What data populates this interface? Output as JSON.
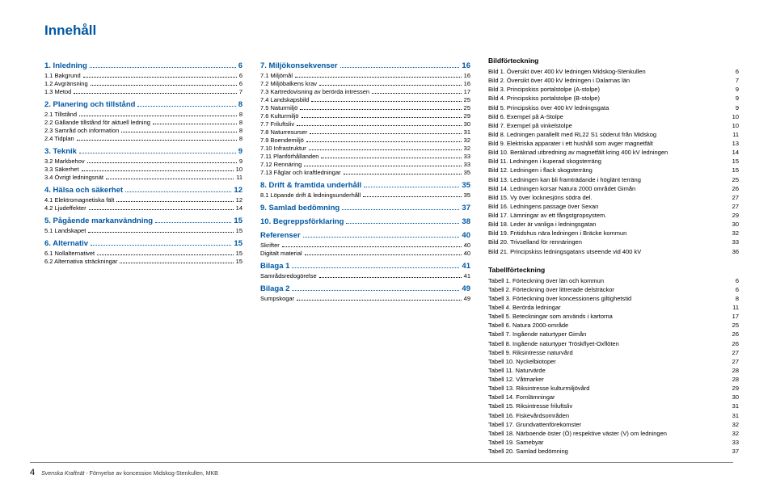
{
  "title": "Innehåll",
  "colors": {
    "accent": "#0058a3",
    "text": "#000000",
    "background": "#ffffff"
  },
  "col1": [
    {
      "type": "main",
      "label": "1. Inledning",
      "page": "6"
    },
    {
      "type": "sub",
      "label": "1.1 Bakgrund",
      "page": "6"
    },
    {
      "type": "sub",
      "label": "1.2 Avgränsning",
      "page": "6"
    },
    {
      "type": "sub",
      "label": "1.3 Metod",
      "page": "7"
    },
    {
      "type": "main",
      "label": "2. Planering och tillstånd",
      "page": "8"
    },
    {
      "type": "sub",
      "label": "2.1 Tillstånd",
      "page": "8"
    },
    {
      "type": "sub",
      "label": "2.2 Gällande tillstånd för aktuell ledning",
      "page": "8"
    },
    {
      "type": "sub",
      "label": "2.3 Samråd och information",
      "page": "8"
    },
    {
      "type": "sub",
      "label": "2.4 Tidplan",
      "page": "8"
    },
    {
      "type": "main",
      "label": "3. Teknik",
      "page": "9"
    },
    {
      "type": "sub",
      "label": "3.2 Markbehov",
      "page": "9"
    },
    {
      "type": "sub",
      "label": "3.3 Säkerhet",
      "page": "10"
    },
    {
      "type": "sub",
      "label": "3.4 Övrigt ledningsnät",
      "page": "11"
    },
    {
      "type": "main",
      "label": "4. Hälsa och säkerhet",
      "page": "12"
    },
    {
      "type": "sub",
      "label": "4.1 Elektromagnetiska fält",
      "page": "12"
    },
    {
      "type": "sub",
      "label": "4.2 Ljudeffekter",
      "page": "14"
    },
    {
      "type": "main",
      "label": "5. Pågående markanvändning",
      "page": "15"
    },
    {
      "type": "sub",
      "label": "5.1 Landskapet",
      "page": "15"
    },
    {
      "type": "main",
      "label": "6. Alternativ",
      "page": "15"
    },
    {
      "type": "sub",
      "label": "6.1 Nollalternativet",
      "page": "15"
    },
    {
      "type": "sub",
      "label": "6.2 Alternativa sträckningar",
      "page": "15"
    }
  ],
  "col2": [
    {
      "type": "main",
      "label": "7. Miljökonsekvenser",
      "page": "16"
    },
    {
      "type": "sub",
      "label": "7.1 Miljömål",
      "page": "16"
    },
    {
      "type": "sub",
      "label": "7.2 Miljöbalkens krav",
      "page": "16"
    },
    {
      "type": "sub",
      "label": "7.3 Kartredovisning av berörda intressen",
      "page": "17"
    },
    {
      "type": "sub",
      "label": "7.4 Landskapsbild",
      "page": "25"
    },
    {
      "type": "sub",
      "label": "7.5 Naturmiljö",
      "page": "25"
    },
    {
      "type": "sub",
      "label": "7.6 Kulturmiljö",
      "page": "29"
    },
    {
      "type": "sub",
      "label": "7.7 Friluftsliv",
      "page": "30"
    },
    {
      "type": "sub",
      "label": "7.8 Naturresurser",
      "page": "31"
    },
    {
      "type": "sub",
      "label": "7.9 Boendemiljö",
      "page": "32"
    },
    {
      "type": "sub",
      "label": "7.10 Infrastruktur",
      "page": "32"
    },
    {
      "type": "sub",
      "label": "7.11 Planförhållanden",
      "page": "33"
    },
    {
      "type": "sub",
      "label": "7.12 Rennäring",
      "page": "33"
    },
    {
      "type": "sub",
      "label": "7.13 Fåglar och kraftledningar",
      "page": "35"
    },
    {
      "type": "main",
      "label": "8. Drift & framtida underhåll",
      "page": "35"
    },
    {
      "type": "sub",
      "label": "8.1 Löpande drift & ledningsunderhåll",
      "page": "35"
    },
    {
      "type": "main",
      "label": "9. Samlad bedömning",
      "page": "37"
    },
    {
      "type": "main",
      "label": "10. Begreppsförklaring",
      "page": "38"
    },
    {
      "type": "main",
      "label": "Referenser",
      "page": "40"
    },
    {
      "type": "sub",
      "label": "Skrifter",
      "page": "40"
    },
    {
      "type": "sub",
      "label": "Digitalt material",
      "page": "40"
    },
    {
      "type": "main",
      "label": "Bilaga 1",
      "page": "41"
    },
    {
      "type": "sub",
      "label": "Samrådsredogörelse",
      "page": "41"
    },
    {
      "type": "main",
      "label": "Bilaga 2",
      "page": "49"
    },
    {
      "type": "sub",
      "label": "Sumpskogar",
      "page": "49"
    }
  ],
  "figures": {
    "heading": "Bildförteckning",
    "items": [
      {
        "label": "Bild 1. Översikt över 400 kV ledningen Midskog-Stenkullen",
        "page": "6"
      },
      {
        "label": "Bild 2. Översikt över 400 kV ledningen i Dalarnas län",
        "page": "7"
      },
      {
        "label": "Bild 3. Principskiss portalstolpe (A-stolpe)",
        "page": "9"
      },
      {
        "label": "Bild 4. Principskiss portalstolpe (B-stolpe)",
        "page": "9"
      },
      {
        "label": "Bild 5. Principskiss över 400 kV ledningsgata",
        "page": "9"
      },
      {
        "label": "Bild 6. Exempel på A-Stolpe",
        "page": "10"
      },
      {
        "label": "Bild 7. Exempel på vinkelstolpe",
        "page": "10"
      },
      {
        "label": "Bild 8. Ledningen parallellt med RL22 S1 söderut från Midskog",
        "page": "11"
      },
      {
        "label": "Bild 9. Elektriska apparater i ett hushåll som avger magnetfält",
        "page": "13"
      },
      {
        "label": "Bild 10. Beräknad utbredning av magnetfält kring 400 kV ledningen",
        "page": "14"
      },
      {
        "label": "Bild 11. Ledningen i kuperad skogsterräng",
        "page": "15"
      },
      {
        "label": "Bild 12. Ledningen i flack skogsterräng",
        "page": "15"
      },
      {
        "label": "Bild 13. Ledningen kan bli framträdande i höglänt terräng",
        "page": "25"
      },
      {
        "label": "Bild 14. Ledningen korsar Natura 2000 området Gimån",
        "page": "26"
      },
      {
        "label": "Bild 15. Vy över locknesjöns södra del.",
        "page": "27"
      },
      {
        "label": "Bild 16. Ledningens passage över Sexan",
        "page": "27"
      },
      {
        "label": "Bild 17. Lämningar av ett fångstgropsystem.",
        "page": "29"
      },
      {
        "label": "Bild 18. Leder är vanliga i ledningsgatan",
        "page": "30"
      },
      {
        "label": "Bild 19. Fritidshus nära ledningen i Bräcke kommun",
        "page": "32"
      },
      {
        "label": "Bild 20. Trivselland för rennäringen",
        "page": "33"
      },
      {
        "label": "Bild 21. Principskiss ledningsgatans utseende vid 400 kV",
        "page": "36"
      }
    ]
  },
  "tables": {
    "heading": "Tabellförteckning",
    "items": [
      {
        "label": "Tabell 1. Förteckning över län och kommun",
        "page": "6"
      },
      {
        "label": "Tabell 2. Förteckning över littrerade delsträckor",
        "page": "6"
      },
      {
        "label": "Tabell 3. Förteckning över koncessionens giltighetstid",
        "page": "8"
      },
      {
        "label": "Tabell 4. Berörda ledningar",
        "page": "11"
      },
      {
        "label": "Tabell 5. Beteckningar som används i kartorna",
        "page": "17"
      },
      {
        "label": "Tabell 6. Natura 2000-område",
        "page": "25"
      },
      {
        "label": "Tabell 7. Ingående naturtyper  Gimån",
        "page": "26"
      },
      {
        "label": "Tabell 8. Ingående naturtyper Tröskflyet-Oxflöten",
        "page": "26"
      },
      {
        "label": "Tabell 9. Riksintresse naturvård",
        "page": "27"
      },
      {
        "label": "Tabell 10. Nyckelbiotoper",
        "page": "27"
      },
      {
        "label": "Tabell 11. Naturvärde",
        "page": "28"
      },
      {
        "label": "Tabell 12. Våtmarker",
        "page": "28"
      },
      {
        "label": "Tabell 13. Riksintresse kulturmiljövård",
        "page": "29"
      },
      {
        "label": "Tabell 14. Fornlämningar",
        "page": "30"
      },
      {
        "label": "Tabell 15. Riksintresse friluftsliv",
        "page": "31"
      },
      {
        "label": "Tabell 16. Fiskevårdsområden",
        "page": "31"
      },
      {
        "label": "Tabell 17. Grundvattenförekomster",
        "page": "32"
      },
      {
        "label": "Tabell 18. Närboende öster (Ö) respektive väster (V) om ledningen",
        "page": "32"
      },
      {
        "label": "Tabell 19. Samebyar",
        "page": "33"
      },
      {
        "label": "Tabell 20. Samlad bedömning",
        "page": "37"
      }
    ]
  },
  "footer": {
    "pagenum": "4",
    "source": "Svenska Kraftnät",
    "detail": "- Förnyelse av koncession Midskog-Stenkullen, MKB"
  }
}
